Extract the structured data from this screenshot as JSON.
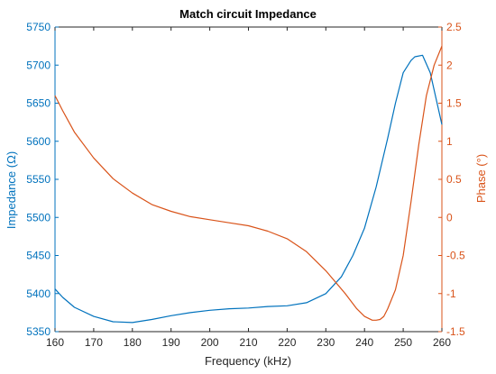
{
  "chart_data": {
    "type": "line",
    "title": "Match circuit Impedance",
    "xlabel": "Frequency (kHz)",
    "ylabel_left": "Impedance (Ω)",
    "ylabel_right": "Phase (°)",
    "xlim": [
      160,
      260
    ],
    "ylim_left": [
      5350,
      5750
    ],
    "ylim_right": [
      -1.5,
      2.5
    ],
    "x_ticks": [
      "160",
      "170",
      "180",
      "190",
      "200",
      "210",
      "220",
      "230",
      "240",
      "250",
      "260"
    ],
    "y_left_ticks": [
      "5350",
      "5400",
      "5450",
      "5500",
      "5550",
      "5600",
      "5650",
      "5700",
      "5750"
    ],
    "y_right_ticks": [
      "-1.5",
      "-1",
      "-0.5",
      "0",
      "0.5",
      "1",
      "1.5",
      "2",
      "2.5"
    ],
    "grid": false,
    "colors": {
      "impedance": "#0072BD",
      "phase": "#D95319",
      "axes": "#262626"
    },
    "series": [
      {
        "axis": "left",
        "x": [
          160,
          162,
          165,
          170,
          175,
          180,
          185,
          190,
          195,
          200,
          205,
          210,
          215,
          220,
          225,
          230,
          234,
          237,
          240,
          243,
          246,
          248,
          250,
          252,
          253,
          255,
          257,
          260
        ],
        "values": [
          5406,
          5395,
          5382,
          5370,
          5363,
          5362,
          5366,
          5371,
          5375,
          5378,
          5380,
          5381,
          5383,
          5384,
          5388,
          5400,
          5422,
          5450,
          5486,
          5540,
          5604,
          5650,
          5690,
          5706,
          5711,
          5713,
          5690,
          5622
        ]
      },
      {
        "axis": "right",
        "x": [
          160,
          162,
          165,
          170,
          175,
          180,
          185,
          190,
          195,
          200,
          205,
          210,
          215,
          220,
          225,
          230,
          235,
          238,
          240,
          242,
          243,
          244,
          245,
          246,
          248,
          250,
          252,
          254,
          256,
          258,
          260
        ],
        "values": [
          1.6,
          1.4,
          1.12,
          0.78,
          0.51,
          0.32,
          0.17,
          0.08,
          0.01,
          -0.03,
          -0.07,
          -0.11,
          -0.18,
          -0.28,
          -0.45,
          -0.7,
          -1.0,
          -1.2,
          -1.3,
          -1.35,
          -1.35,
          -1.34,
          -1.3,
          -1.2,
          -0.95,
          -0.5,
          0.2,
          0.95,
          1.6,
          2.0,
          2.25
        ]
      }
    ]
  }
}
